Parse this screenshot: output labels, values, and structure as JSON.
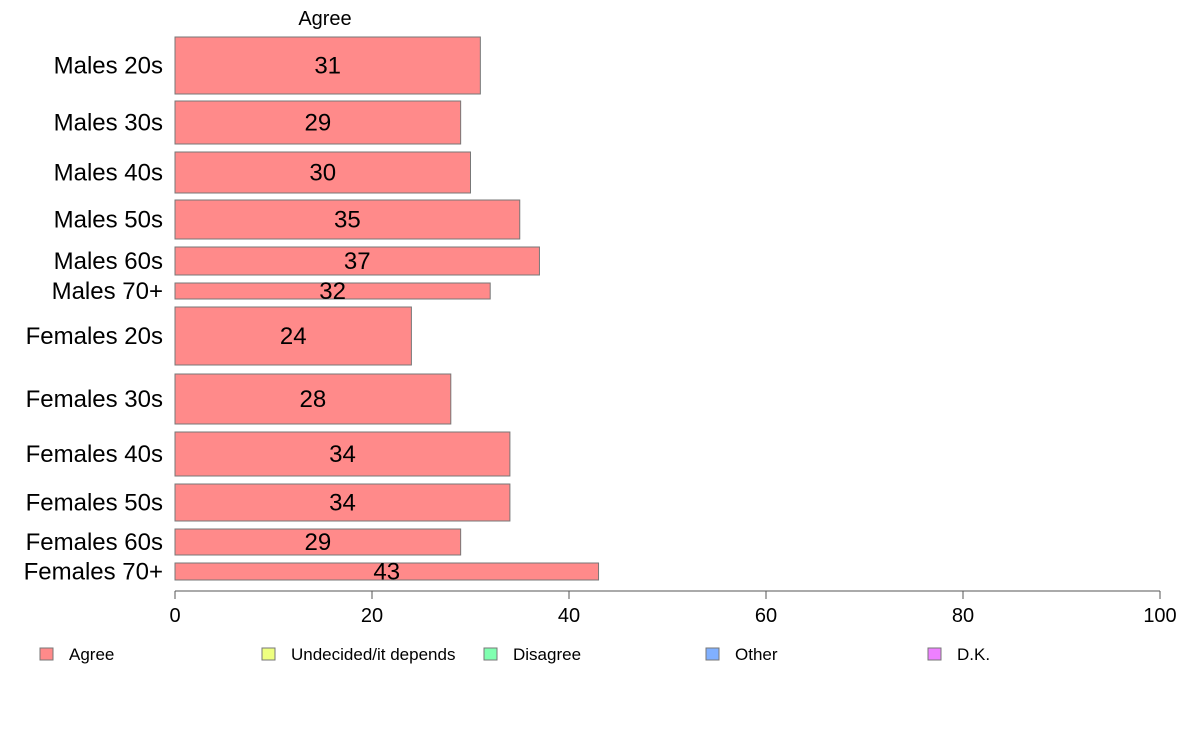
{
  "chart_data": {
    "type": "bar",
    "orientation": "horizontal",
    "stacked": true,
    "column_title": "Agree",
    "categories": [
      "Males 20s",
      "Males 30s",
      "Males 40s",
      "Males 50s",
      "Males 60s",
      "Males 70+",
      "Females 20s",
      "Females 30s",
      "Females 40s",
      "Females 50s",
      "Females 60s",
      "Females 70+"
    ],
    "series": [
      {
        "name": "Agree",
        "color": "#ff8a8a",
        "values": [
          31,
          29,
          30,
          35,
          37,
          32,
          24,
          28,
          34,
          34,
          29,
          43
        ]
      }
    ],
    "value_labels": [
      "31",
      "29",
      "30",
      "35",
      "37",
      "32",
      "24",
      "28",
      "34",
      "34",
      "29",
      "43"
    ],
    "xlim": [
      0,
      100
    ],
    "xticks": [
      "0",
      "20",
      "40",
      "60",
      "80",
      "100"
    ],
    "grid": false,
    "legend": {
      "placement": "bottom",
      "items": [
        {
          "label": "Agree",
          "color": "#ff8a8a"
        },
        {
          "label": "Undecided/it depends",
          "color": "#eeff80"
        },
        {
          "label": "Disagree",
          "color": "#80ffb0"
        },
        {
          "label": "Other",
          "color": "#80b0ff"
        },
        {
          "label": "D.K.",
          "color": "#ee80ff"
        }
      ]
    }
  }
}
